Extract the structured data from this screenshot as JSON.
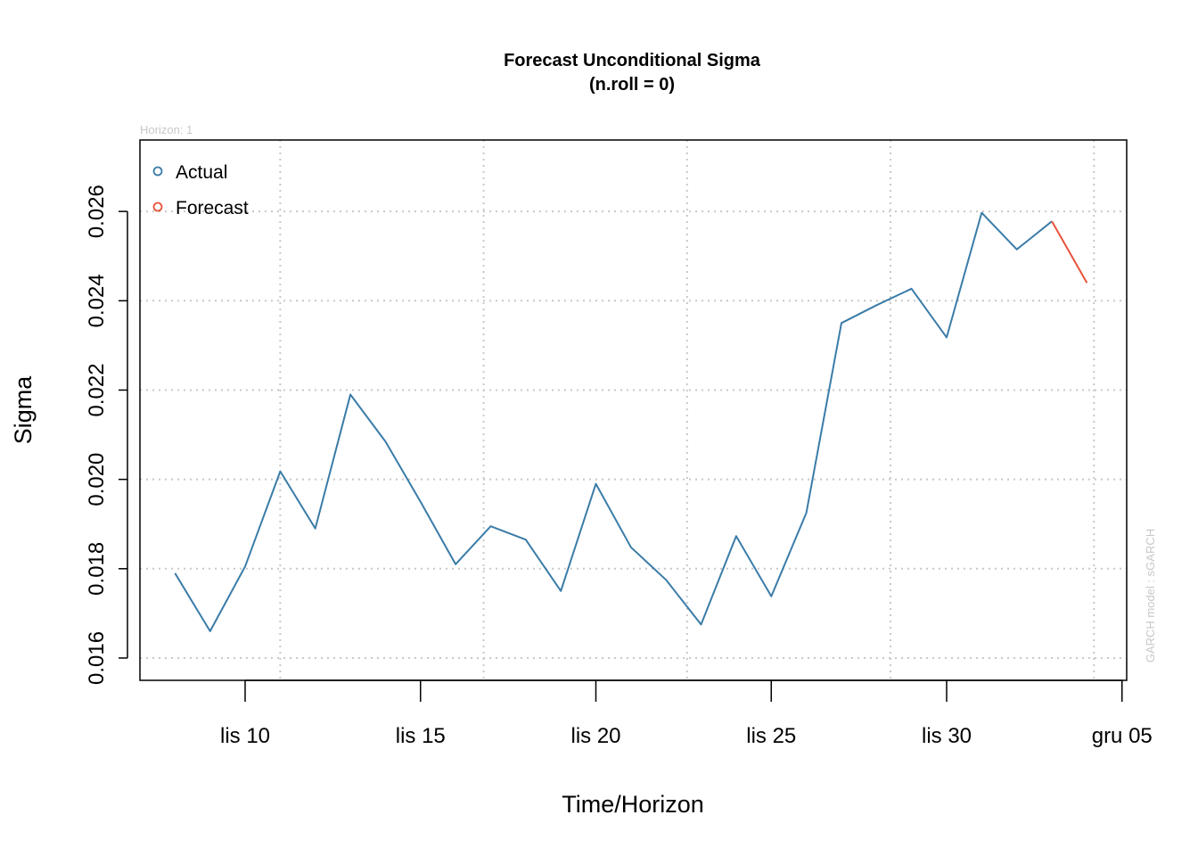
{
  "chart_data": {
    "type": "line",
    "title": "Forecast Unconditional Sigma",
    "subtitle": "(n.roll = 0)",
    "xlabel": "Time/Horizon",
    "ylabel": "Sigma",
    "horizon_note": "Horizon: 1",
    "model_note": "GARCH model :  sGARCH",
    "ylim": [
      0.0155,
      0.0276
    ],
    "y_ticks": [
      0.016,
      0.018,
      0.02,
      0.022,
      0.024,
      0.026
    ],
    "y_tick_labels": [
      "0.016",
      "0.018",
      "0.020",
      "0.022",
      "0.024",
      "0.026"
    ],
    "x_range_days": [
      5,
      35
    ],
    "x_ticks": [
      10,
      15,
      20,
      25,
      30,
      35
    ],
    "x_tick_labels": [
      "lis 10",
      "lis 15",
      "lis 20",
      "lis 25",
      "lis 30",
      "gru 05"
    ],
    "grid": true,
    "legend_position": "top-left",
    "legend": [
      {
        "label": "Actual",
        "color": "#3a7ca8"
      },
      {
        "label": "Forecast",
        "color": "#e8523a"
      }
    ],
    "series": [
      {
        "name": "Actual",
        "color": "#3a7ca8",
        "x": [
          8,
          9,
          10,
          11,
          12,
          13,
          14,
          15,
          16,
          17,
          18,
          19,
          20,
          21,
          22,
          23,
          24,
          25,
          26,
          27,
          28,
          29,
          30,
          31,
          32,
          33
        ],
        "values": [
          0.0179,
          0.0166,
          0.01805,
          0.02018,
          0.0189,
          0.0219,
          0.02085,
          0.0195,
          0.0181,
          0.01895,
          0.01865,
          0.0175,
          0.0199,
          0.01848,
          0.01775,
          0.01675,
          0.01873,
          0.01738,
          0.01925,
          0.0235,
          0.0239,
          0.02427,
          0.02318,
          0.02597,
          0.02515,
          0.02578
        ]
      },
      {
        "name": "Forecast",
        "color": "#e8523a",
        "x": [
          33,
          34
        ],
        "values": [
          0.02578,
          0.0244
        ]
      }
    ]
  }
}
